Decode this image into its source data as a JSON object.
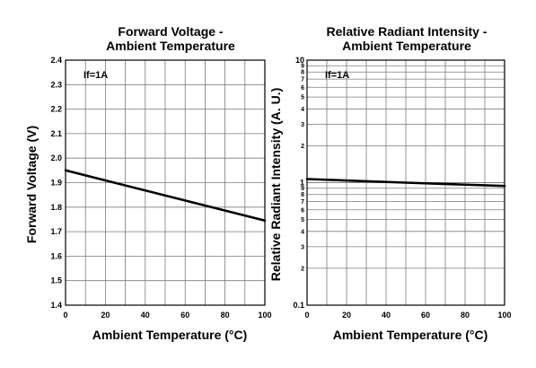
{
  "chart_data": [
    {
      "type": "line",
      "title": [
        "Forward Voltage -",
        "Ambient Temperature"
      ],
      "xlabel": "Ambient Temperature (°C)",
      "ylabel": "Forward Voltage (V)",
      "xlim": [
        0,
        100
      ],
      "ylim": [
        1.4,
        2.4
      ],
      "yscale": "linear",
      "grid": true,
      "xticks": [
        "0",
        "20",
        "40",
        "60",
        "80",
        "100"
      ],
      "yticks": [
        "1.4",
        "1.5",
        "1.6",
        "1.7",
        "1.8",
        "1.9",
        "2.0",
        "2.1",
        "2.2",
        "2.3",
        "2.4"
      ],
      "annotation": "If=1A",
      "series": [
        {
          "x": [
            0,
            100
          ],
          "y": [
            1.95,
            1.745
          ]
        }
      ]
    },
    {
      "type": "line",
      "title": [
        "Relative Radiant Intensity -",
        "Ambient Temperature"
      ],
      "xlabel": "Ambient Temperature (°C)",
      "ylabel": "Relative Radiant Intensity (A. U.)",
      "xlim": [
        0,
        100
      ],
      "ylim": [
        0.1,
        10
      ],
      "yscale": "log",
      "grid": true,
      "xticks": [
        "0",
        "20",
        "40",
        "60",
        "80",
        "100"
      ],
      "yticks_major": [
        "0.1",
        "1",
        "10"
      ],
      "yticks_minor": [
        "2",
        "3",
        "4",
        "5",
        "6",
        "7",
        "8",
        "9"
      ],
      "annotation": "If=1A",
      "series": [
        {
          "x": [
            0,
            50,
            100
          ],
          "y": [
            1.07,
            1.0,
            0.94
          ]
        }
      ]
    }
  ]
}
